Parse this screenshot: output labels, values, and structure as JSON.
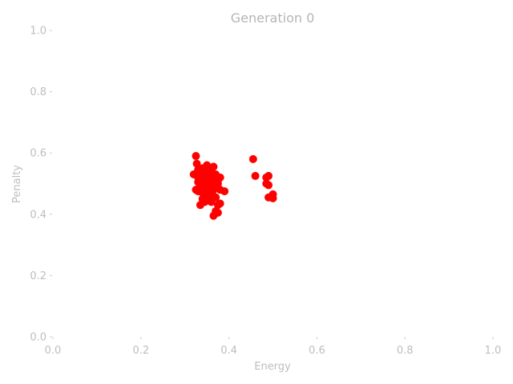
{
  "chart_data": {
    "type": "scatter",
    "title": "Generation 0",
    "xlabel": "Energy",
    "ylabel": "Penalty",
    "xlim": [
      0.0,
      1.0
    ],
    "ylim": [
      0.0,
      1.0
    ],
    "xticks": [
      "0.0",
      "0.2",
      "0.4",
      "0.6",
      "0.8",
      "1.0"
    ],
    "yticks": [
      "0.0",
      "0.2",
      "0.4",
      "0.6",
      "0.8",
      "1.0"
    ],
    "grid": false,
    "marker_color": "#ff0000",
    "series": [
      {
        "points": [
          [
            0.325,
            0.59
          ],
          [
            0.327,
            0.565
          ],
          [
            0.32,
            0.53
          ],
          [
            0.33,
            0.545
          ],
          [
            0.335,
            0.52
          ],
          [
            0.34,
            0.55
          ],
          [
            0.345,
            0.53
          ],
          [
            0.35,
            0.56
          ],
          [
            0.355,
            0.54
          ],
          [
            0.36,
            0.525
          ],
          [
            0.365,
            0.555
          ],
          [
            0.37,
            0.53
          ],
          [
            0.375,
            0.51
          ],
          [
            0.38,
            0.52
          ],
          [
            0.33,
            0.505
          ],
          [
            0.335,
            0.49
          ],
          [
            0.34,
            0.51
          ],
          [
            0.345,
            0.495
          ],
          [
            0.35,
            0.505
          ],
          [
            0.355,
            0.49
          ],
          [
            0.36,
            0.5
          ],
          [
            0.365,
            0.51
          ],
          [
            0.37,
            0.49
          ],
          [
            0.375,
            0.5
          ],
          [
            0.38,
            0.48
          ],
          [
            0.325,
            0.48
          ],
          [
            0.33,
            0.475
          ],
          [
            0.34,
            0.47
          ],
          [
            0.345,
            0.48
          ],
          [
            0.35,
            0.465
          ],
          [
            0.355,
            0.475
          ],
          [
            0.36,
            0.46
          ],
          [
            0.365,
            0.48
          ],
          [
            0.39,
            0.475
          ],
          [
            0.37,
            0.455
          ],
          [
            0.34,
            0.45
          ],
          [
            0.35,
            0.455
          ],
          [
            0.345,
            0.44
          ],
          [
            0.335,
            0.43
          ],
          [
            0.355,
            0.445
          ],
          [
            0.36,
            0.44
          ],
          [
            0.38,
            0.435
          ],
          [
            0.375,
            0.43
          ],
          [
            0.37,
            0.41
          ],
          [
            0.375,
            0.405
          ],
          [
            0.365,
            0.395
          ],
          [
            0.34,
            0.52
          ],
          [
            0.35,
            0.52
          ],
          [
            0.36,
            0.515
          ],
          [
            0.355,
            0.51
          ],
          [
            0.345,
            0.5
          ],
          [
            0.33,
            0.52
          ],
          [
            0.34,
            0.535
          ],
          [
            0.36,
            0.545
          ],
          [
            0.352,
            0.535
          ],
          [
            0.366,
            0.5
          ],
          [
            0.338,
            0.498
          ],
          [
            0.362,
            0.47
          ],
          [
            0.348,
            0.485
          ],
          [
            0.372,
            0.52
          ],
          [
            0.455,
            0.58
          ],
          [
            0.46,
            0.525
          ],
          [
            0.485,
            0.52
          ],
          [
            0.49,
            0.525
          ],
          [
            0.485,
            0.5
          ],
          [
            0.49,
            0.495
          ],
          [
            0.5,
            0.465
          ],
          [
            0.49,
            0.455
          ],
          [
            0.5,
            0.452
          ]
        ]
      }
    ]
  }
}
